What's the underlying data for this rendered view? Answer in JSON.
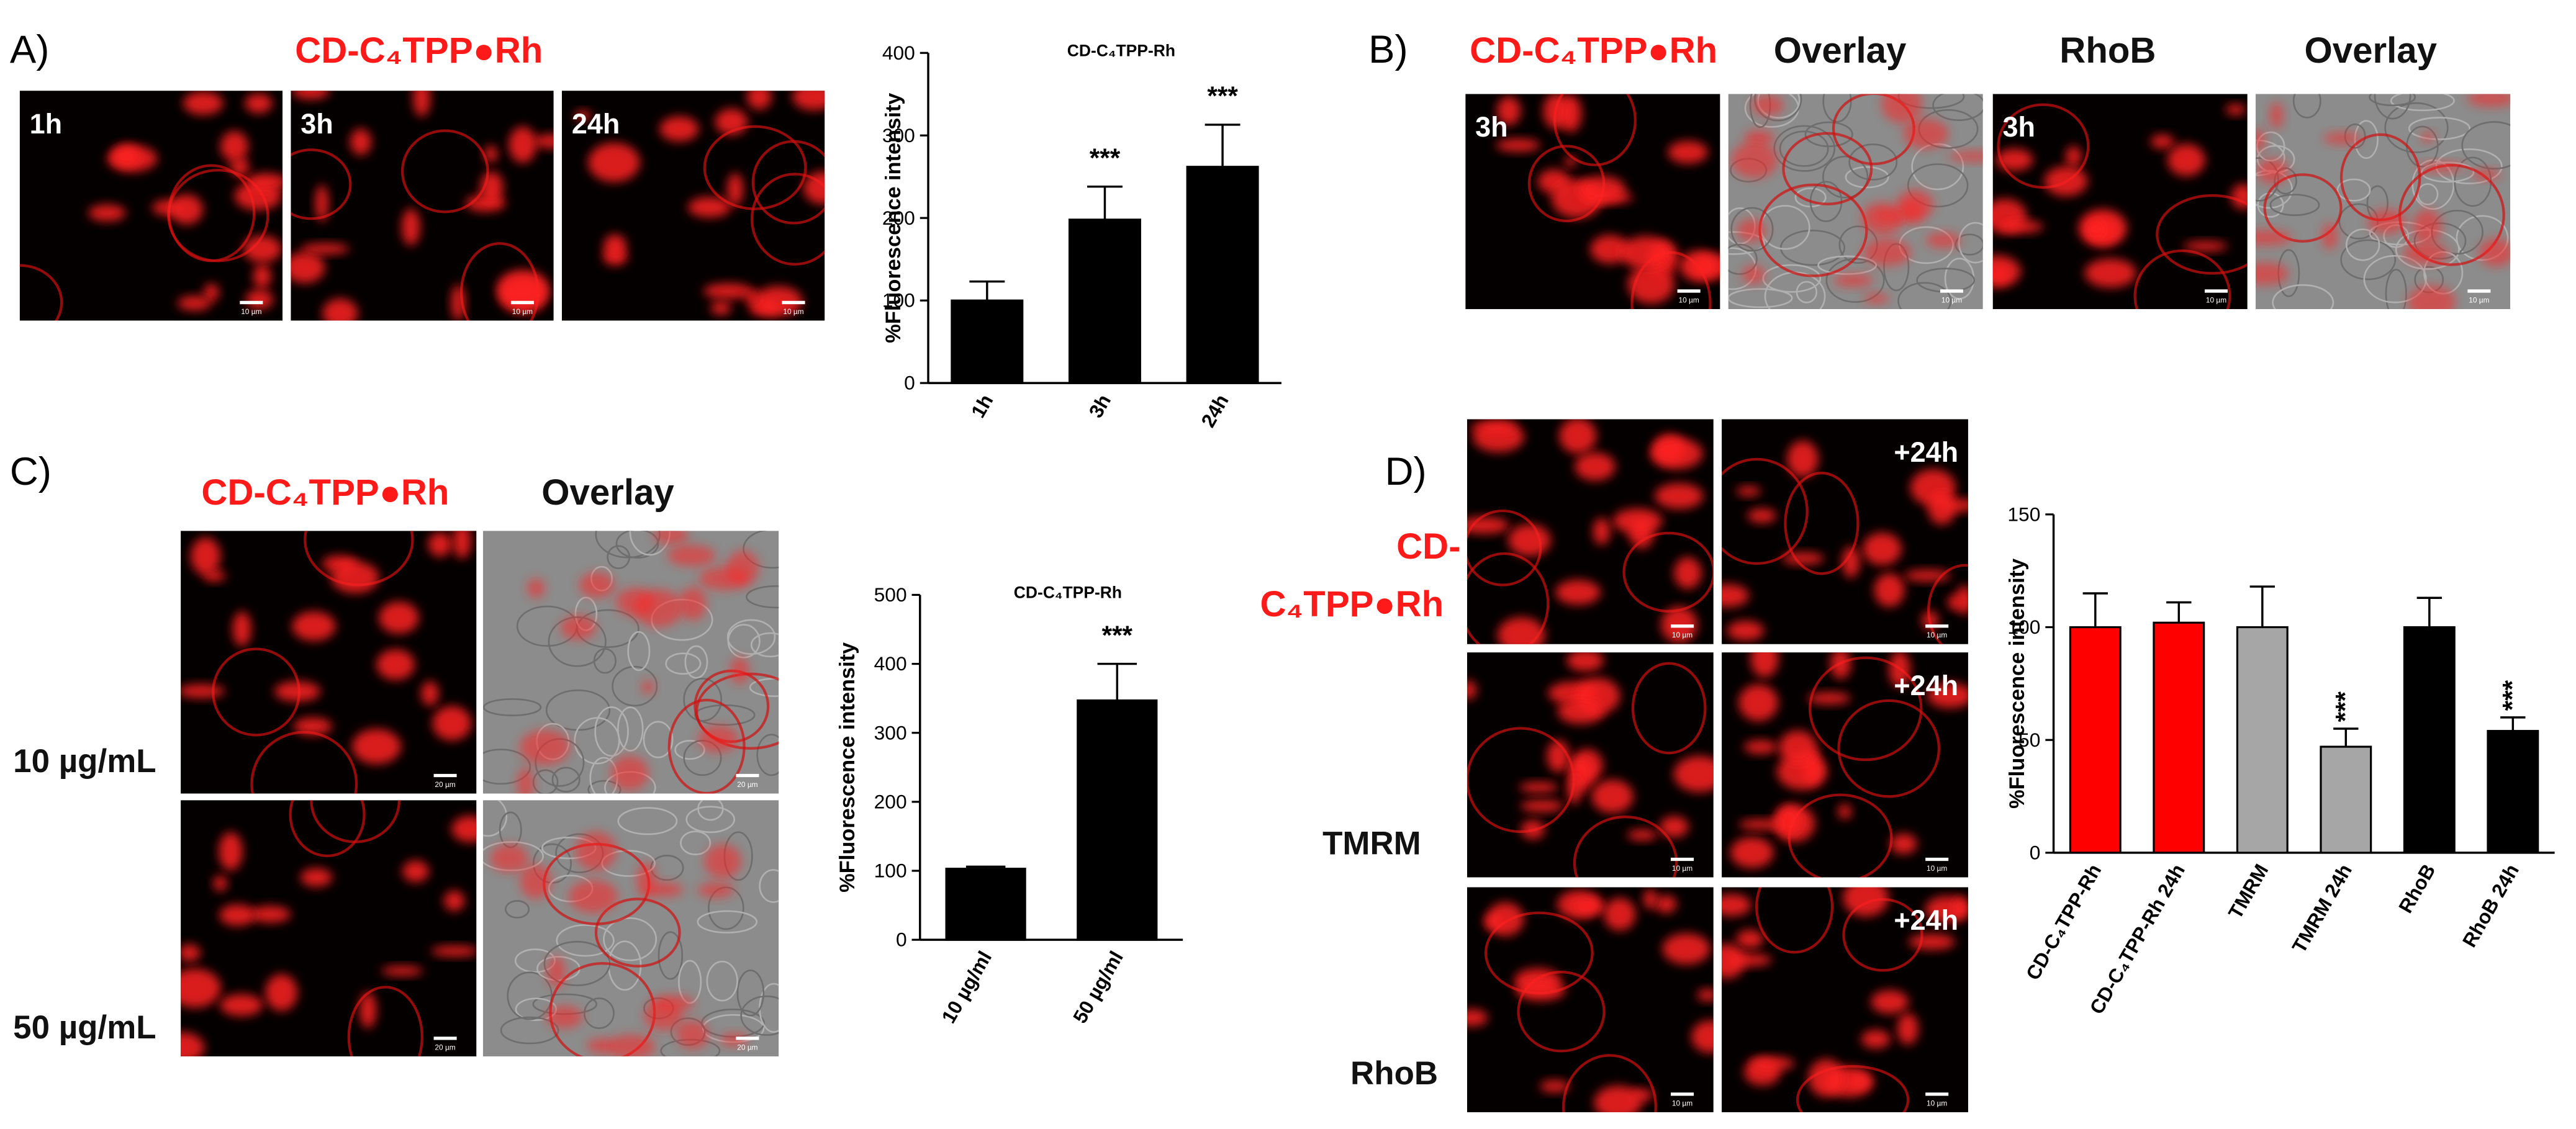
{
  "figure": {
    "panel_labels": [
      "A)",
      "B)",
      "C)",
      "D)"
    ],
    "a_header": "CD-C₄TPP●Rh",
    "b_headers": [
      "CD-C₄TPP●Rh",
      "Overlay",
      "RhoB",
      "Overlay"
    ],
    "c_headers": [
      "CD-C₄TPP●Rh",
      "Overlay"
    ],
    "c_row_labels": [
      "10 µg/mL",
      "50 µg/mL"
    ],
    "d_row_labels": [
      "CD-",
      "C₄TPP●Rh",
      "TMRM",
      "RhoB"
    ],
    "images": [
      {
        "label": "1h",
        "scale_bar": "10 µm"
      },
      {
        "label": "3h",
        "scale_bar": "10 µm"
      },
      {
        "label": "24h",
        "scale_bar": "10 µm"
      },
      {
        "label": "3h",
        "scale_bar": "10 µm"
      },
      {
        "scale_bar": "10 µm"
      },
      {
        "label": "3h",
        "scale_bar": "10 µm"
      },
      {
        "scale_bar": "10 µm"
      },
      {
        "scale_bar": "20 µm"
      },
      {
        "scale_bar": "20 µm"
      },
      {
        "scale_bar": "20 µm"
      },
      {
        "scale_bar": "20 µm"
      },
      {
        "scale_bar": "10 µm"
      },
      {
        "label": "+24h",
        "scale_bar": "10 µm"
      },
      {
        "scale_bar": "10 µm"
      },
      {
        "label": "+24h",
        "scale_bar": "10 µm"
      },
      {
        "scale_bar": "10 µm"
      },
      {
        "label": "+24h",
        "scale_bar": "10 µm"
      }
    ]
  },
  "chart_data": [
    {
      "type": "bar",
      "title": "CD-C₄TPP-Rh",
      "ylabel": "%Fluorescence intensity",
      "categories": [
        "1h",
        "3h",
        "24h"
      ],
      "values": [
        100,
        198,
        262
      ],
      "errors": [
        23,
        40,
        51
      ],
      "colors": [
        "#000000",
        "#000000",
        "#000000"
      ],
      "value_annotations": [
        null,
        "***",
        "***"
      ],
      "ylim": [
        0,
        400
      ],
      "yticks": [
        0,
        100,
        200,
        300,
        400
      ]
    },
    {
      "type": "bar",
      "title": "CD-C₄TPP-Rh",
      "ylabel": "%Fluorescence intensity",
      "categories": [
        "10 µg/ml",
        "50 µg/ml"
      ],
      "values": [
        103,
        347
      ],
      "errors": [
        3,
        53
      ],
      "colors": [
        "#000000",
        "#000000"
      ],
      "value_annotations": [
        null,
        "***"
      ],
      "ylim": [
        0,
        500
      ],
      "yticks": [
        0,
        100,
        200,
        300,
        400,
        500
      ]
    },
    {
      "type": "bar",
      "ylabel": "%Fluorescence intensity",
      "categories": [
        "CD-C₄TPP-Rh",
        "CD-C₄TPP-Rh 24h",
        "TMRM",
        "TMRM 24h",
        "RhoB",
        "RhoB 24h"
      ],
      "values": [
        100,
        102,
        100,
        47,
        100,
        54
      ],
      "errors": [
        15,
        9,
        18,
        8,
        13,
        6
      ],
      "colors": [
        "#ff0000",
        "#ff0000",
        "#a6a6a6",
        "#a6a6a6",
        "#000000",
        "#000000"
      ],
      "value_annotations": [
        null,
        null,
        null,
        "***",
        null,
        "***"
      ],
      "ylim": [
        0,
        150
      ],
      "yticks": [
        0,
        50,
        100,
        150
      ]
    }
  ]
}
